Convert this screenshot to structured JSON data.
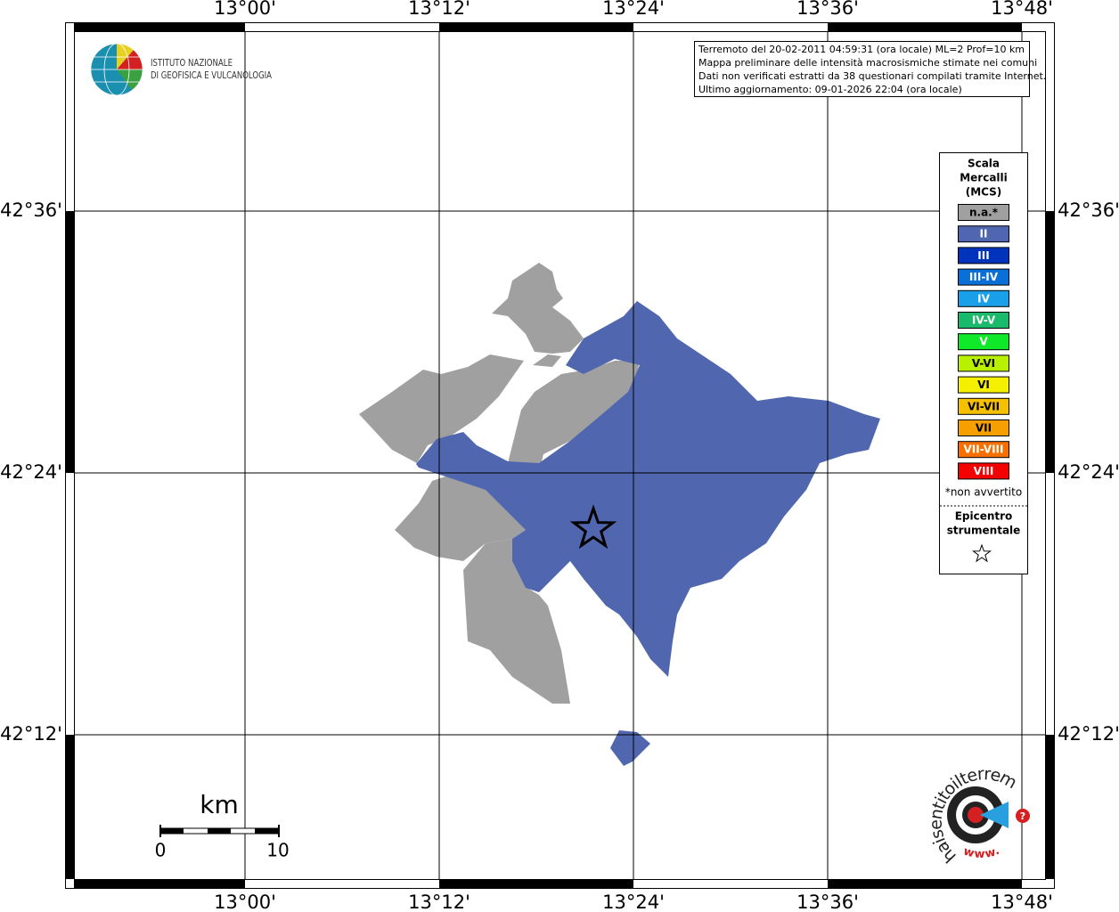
{
  "map": {
    "lon_labels": [
      "13°00'",
      "13°12'",
      "13°24'",
      "13°36'",
      "13°48'"
    ],
    "lat_labels": [
      "42°36'",
      "42°24'",
      "42°12'"
    ],
    "region_color": "#5066ae",
    "na_color": "#a0a0a0"
  },
  "info_box": {
    "lines": [
      "Terremoto del 20-02-2011 04:59:31 (ora locale) ML=2 Prof=10 km",
      "Mappa preliminare delle intensità macrosismiche stimate nei comuni",
      "Dati non verificati estratti da 38 questionari compilati tramite Internet.",
      "Ultimo aggiornamento: 09-01-2026 22:04 (ora locale)"
    ]
  },
  "legend": {
    "title": [
      "Scala",
      "Mercalli",
      "(MCS)"
    ],
    "items": [
      {
        "label": "n.a.*",
        "color": "#a0a0a0"
      },
      {
        "label": "II",
        "color": "#5066b0"
      },
      {
        "label": "III",
        "color": "#0033bb"
      },
      {
        "label": "III-IV",
        "color": "#0a6fd6"
      },
      {
        "label": "IV",
        "color": "#1aa0e8"
      },
      {
        "label": "IV-V",
        "color": "#1aba6a"
      },
      {
        "label": "V",
        "color": "#10e82a"
      },
      {
        "label": "V-VI",
        "color": "#b8f000"
      },
      {
        "label": "VI",
        "color": "#f5f000"
      },
      {
        "label": "VI-VII",
        "color": "#f5c000"
      },
      {
        "label": "VII",
        "color": "#f5a000"
      },
      {
        "label": "VII-VIII",
        "color": "#f57000"
      },
      {
        "label": "VIII",
        "color": "#f50000"
      }
    ],
    "note": "*non avvertito",
    "epicenter": [
      "Epicentro",
      "strumentale"
    ]
  },
  "scale_bar": {
    "unit": "km",
    "labels": [
      "0",
      "10"
    ]
  },
  "logo_ingv": {
    "lines": [
      "ISTITUTO NAZIONALE",
      "DI GEOFISICA E VULCANOLOGIA"
    ]
  },
  "logo_hsit": {
    "text": "haisentitoilterremoto.it",
    "prefix": "www.",
    "mark": "?"
  }
}
